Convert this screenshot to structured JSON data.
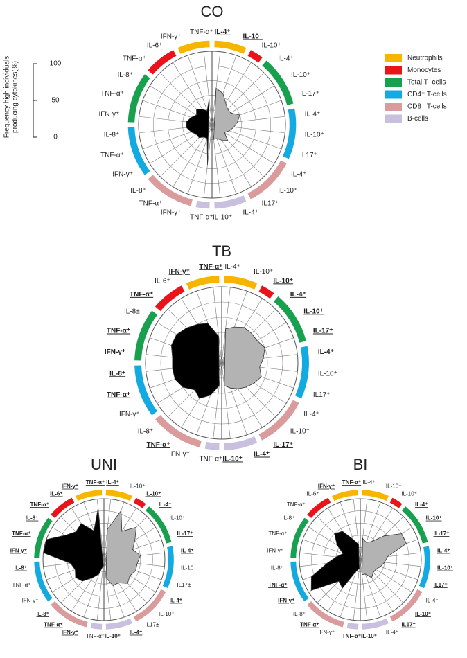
{
  "legend": [
    {
      "name": "Neutrophils",
      "color": "#f7b500"
    },
    {
      "name": "Monocytes",
      "color": "#e8141a"
    },
    {
      "name": "Total T- cells",
      "color": "#19a04f"
    },
    {
      "name": "CD4⁺ T-cells",
      "color": "#13a9e1"
    },
    {
      "name": "CD8⁺ T-cells",
      "color": "#d99b9b"
    },
    {
      "name": "B-cells",
      "color": "#c9bfdf"
    }
  ],
  "spoke_groups": [
    0,
    0,
    1,
    2,
    2,
    2,
    3,
    3,
    3,
    4,
    4,
    4,
    5,
    5,
    5,
    4,
    4,
    4,
    3,
    3,
    3,
    2,
    2,
    2,
    1,
    1,
    0,
    0
  ],
  "right_color": "#b3b3b3",
  "left_color": "#000000",
  "chart_data": [
    {
      "type": "radar",
      "title": "CO",
      "ylabel_lines": [
        "Frequency high individuals",
        "producing cytokines(%)"
      ],
      "rlim": [
        0,
        100
      ],
      "yticks": [
        0,
        50,
        100
      ],
      "categories": [
        "IL-4⁺",
        "IL-10⁺",
        "IL-10⁺",
        "IL-4⁺",
        "IL-10⁺",
        "IL-17⁺",
        "IL-4⁺",
        "IL-10⁺",
        "IL17⁺",
        "IL-4⁺",
        "IL-10⁺",
        "IL17⁺",
        "IL-4⁺",
        "IL-10⁺",
        "TNF-α⁺",
        "IFN-γ⁺",
        "TNF-α⁺",
        "IL-8⁺",
        "IFN-γ⁺",
        "TNF-α⁺",
        "IL-8⁺",
        "IFN-γ⁺",
        "TNF-α⁺",
        "IL-8⁺",
        "TNF-α⁺",
        "IL-6⁺",
        "IFN-γ⁺",
        "TNF-α⁺"
      ],
      "highlighted": [
        true,
        true,
        false,
        false,
        false,
        false,
        false,
        false,
        false,
        false,
        false,
        false,
        false,
        false,
        false,
        false,
        false,
        false,
        false,
        false,
        false,
        false,
        false,
        false,
        false,
        false,
        false,
        false
      ],
      "values": [
        50,
        45,
        35,
        30,
        30,
        40,
        35,
        30,
        25,
        20,
        30,
        25,
        20,
        20,
        55,
        20,
        20,
        25,
        25,
        30,
        35,
        35,
        30,
        25,
        30,
        25,
        20,
        35
      ]
    },
    {
      "type": "radar",
      "title": "TB",
      "rlim": [
        0,
        100
      ],
      "categories": [
        "IL-4⁺",
        "IL-10⁺",
        "IL-10⁺",
        "IL-4⁺",
        "IL-10⁺",
        "IL-17⁺",
        "IL-4⁺",
        "IL-10⁺",
        "IL17⁺",
        "IL-4⁺",
        "IL-10⁺",
        "IL-17⁺",
        "IL-4⁺",
        "IL-10⁺",
        "TNF-α⁺",
        "IFN-γ⁺",
        "TNF-α⁺",
        "IL-8⁺",
        "IFN-γ⁺",
        "TNF-α⁺",
        "IL-8⁺",
        "IFN-γ⁺",
        "TNF-α⁺",
        "IL-8±",
        "TNF-α⁺",
        "IL-6⁺",
        "IFN-γ⁺",
        "TNF-α⁺"
      ],
      "highlighted": [
        false,
        false,
        true,
        true,
        true,
        true,
        true,
        false,
        false,
        false,
        false,
        true,
        true,
        true,
        false,
        false,
        true,
        false,
        false,
        true,
        true,
        true,
        true,
        false,
        true,
        false,
        true,
        true
      ],
      "values": [
        45,
        50,
        55,
        55,
        55,
        60,
        55,
        50,
        55,
        50,
        45,
        40,
        35,
        30,
        30,
        45,
        55,
        50,
        60,
        65,
        65,
        65,
        70,
        70,
        65,
        60,
        55,
        35
      ]
    },
    {
      "type": "radar",
      "title": "UNI",
      "rlim": [
        0,
        100
      ],
      "categories": [
        "IL-4⁺",
        "IL-10⁺",
        "IL-10⁺",
        "IL-4⁺",
        "IL-10⁺",
        "IL-17⁺",
        "IL-4⁺",
        "IL-10⁺",
        "IL17±",
        "IL-4⁺",
        "IL-10⁺",
        "IL17±",
        "IL-4⁺",
        "IL-10⁺",
        "TNF-α⁺",
        "IFN-γ⁺",
        "TNF-α⁺",
        "IL-8⁺",
        "IFN-γ⁺",
        "TNF-α⁺",
        "IL-8⁺",
        "IFN-γ⁺",
        "TNF-α⁺",
        "IL-8⁺",
        "TNF-α⁺",
        "IL-6⁺",
        "IFN-γ⁺",
        "TNF-α⁺"
      ],
      "highlighted": [
        true,
        false,
        true,
        true,
        false,
        true,
        true,
        false,
        false,
        true,
        false,
        false,
        true,
        true,
        false,
        true,
        true,
        true,
        false,
        false,
        true,
        true,
        true,
        true,
        true,
        true,
        true,
        true
      ],
      "values": [
        50,
        85,
        55,
        75,
        60,
        50,
        60,
        55,
        55,
        50,
        55,
        45,
        45,
        30,
        10,
        25,
        35,
        50,
        55,
        50,
        55,
        100,
        100,
        75,
        65,
        70,
        50,
        85
      ]
    },
    {
      "type": "radar",
      "title": "BI",
      "rlim": [
        0,
        100
      ],
      "categories": [
        "IL-4⁺",
        "IL-10⁺",
        "IL-10⁺",
        "IL-4⁺",
        "IL-10⁺",
        "IL-17⁺",
        "IL-4⁺",
        "IL-10⁺",
        "IL17⁺",
        "IL-4⁺",
        "IL-10⁺",
        "IL17⁺",
        "IL-4⁺",
        "IL-10⁺",
        "TNF-α⁺",
        "IFN-γ⁺",
        "TNF-α⁺",
        "IL-8⁺",
        "IFN-γ⁺",
        "TNF-α⁺",
        "IL-8⁺",
        "IFN-γ⁺",
        "TNF-α⁺",
        "IL-8⁺",
        "TNF-α⁺",
        "IL-6⁺",
        "IFN-γ⁺",
        "TNF-α⁺"
      ],
      "highlighted": [
        false,
        false,
        false,
        true,
        true,
        true,
        true,
        true,
        true,
        false,
        true,
        true,
        false,
        true,
        true,
        false,
        true,
        false,
        true,
        true,
        false,
        false,
        false,
        false,
        false,
        false,
        true,
        true
      ],
      "values": [
        35,
        30,
        35,
        55,
        80,
        80,
        45,
        40,
        35,
        30,
        30,
        35,
        25,
        25,
        15,
        20,
        55,
        50,
        95,
        85,
        55,
        40,
        30,
        45,
        60,
        55,
        35,
        25
      ]
    }
  ]
}
